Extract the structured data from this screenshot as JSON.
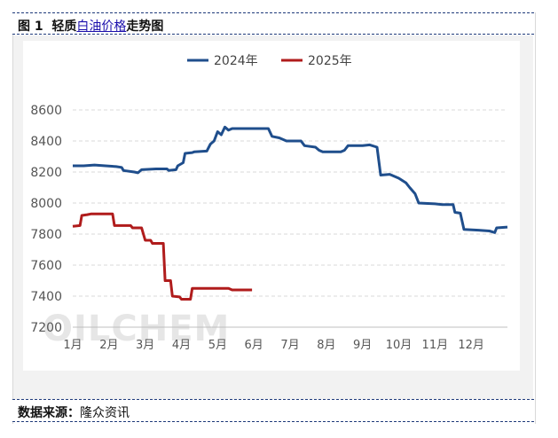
{
  "header": {
    "figure_no": "图 1",
    "title_prefix": "轻质",
    "title_link": "白油价格",
    "title_suffix": "走势图"
  },
  "footer": {
    "source_label": "数据来源：",
    "source_value": "隆众资讯"
  },
  "watermark": "OILCHEM",
  "colors": {
    "s2024": "#1f4e8c",
    "s2025": "#b01c1c",
    "grid": "#d9d9d9",
    "axis": "#555555"
  },
  "chart_data": {
    "type": "line",
    "title": "",
    "xlabel": "",
    "ylabel": "",
    "ylim": [
      7200,
      8600
    ],
    "yticks": [
      7200,
      7400,
      7600,
      7800,
      8000,
      8200,
      8400,
      8600
    ],
    "categories": [
      "1月",
      "2月",
      "3月",
      "4月",
      "5月",
      "6月",
      "7月",
      "8月",
      "9月",
      "10月",
      "11月",
      "12月"
    ],
    "x_unit": "month",
    "legend_position": "top-center",
    "grid": true,
    "series": [
      {
        "name": "2024年",
        "color": "#1f4e8c",
        "points": [
          [
            0.0,
            8240
          ],
          [
            0.3,
            8240
          ],
          [
            0.6,
            8245
          ],
          [
            0.9,
            8240
          ],
          [
            1.2,
            8235
          ],
          [
            1.35,
            8230
          ],
          [
            1.4,
            8210
          ],
          [
            1.7,
            8200
          ],
          [
            1.8,
            8195
          ],
          [
            1.9,
            8215
          ],
          [
            2.3,
            8220
          ],
          [
            2.6,
            8220
          ],
          [
            2.65,
            8210
          ],
          [
            2.85,
            8215
          ],
          [
            2.9,
            8240
          ],
          [
            3.05,
            8260
          ],
          [
            3.1,
            8320
          ],
          [
            3.3,
            8325
          ],
          [
            3.35,
            8330
          ],
          [
            3.7,
            8335
          ],
          [
            3.8,
            8380
          ],
          [
            3.9,
            8400
          ],
          [
            4.0,
            8460
          ],
          [
            4.1,
            8440
          ],
          [
            4.2,
            8490
          ],
          [
            4.3,
            8470
          ],
          [
            4.4,
            8480
          ],
          [
            5.4,
            8480
          ],
          [
            5.5,
            8430
          ],
          [
            5.7,
            8420
          ],
          [
            5.9,
            8400
          ],
          [
            6.3,
            8400
          ],
          [
            6.4,
            8370
          ],
          [
            6.7,
            8360
          ],
          [
            6.8,
            8340
          ],
          [
            6.9,
            8330
          ],
          [
            7.4,
            8330
          ],
          [
            7.5,
            8340
          ],
          [
            7.6,
            8370
          ],
          [
            8.0,
            8370
          ],
          [
            8.2,
            8375
          ],
          [
            8.4,
            8360
          ],
          [
            8.5,
            8180
          ],
          [
            8.75,
            8185
          ],
          [
            9.0,
            8160
          ],
          [
            9.2,
            8130
          ],
          [
            9.3,
            8100
          ],
          [
            9.45,
            8060
          ],
          [
            9.55,
            8000
          ],
          [
            10.0,
            7995
          ],
          [
            10.2,
            7990
          ],
          [
            10.5,
            7990
          ],
          [
            10.55,
            7940
          ],
          [
            10.7,
            7935
          ],
          [
            10.8,
            7830
          ],
          [
            11.2,
            7825
          ],
          [
            11.5,
            7820
          ],
          [
            11.65,
            7810
          ],
          [
            11.7,
            7840
          ],
          [
            12.0,
            7845
          ]
        ]
      },
      {
        "name": "2025年",
        "color": "#b01c1c",
        "points": [
          [
            0.0,
            7850
          ],
          [
            0.2,
            7855
          ],
          [
            0.25,
            7920
          ],
          [
            0.4,
            7925
          ],
          [
            0.5,
            7930
          ],
          [
            1.1,
            7930
          ],
          [
            1.15,
            7855
          ],
          [
            1.6,
            7855
          ],
          [
            1.65,
            7840
          ],
          [
            1.9,
            7840
          ],
          [
            2.0,
            7760
          ],
          [
            2.15,
            7760
          ],
          [
            2.2,
            7740
          ],
          [
            2.5,
            7740
          ],
          [
            2.55,
            7500
          ],
          [
            2.7,
            7500
          ],
          [
            2.75,
            7400
          ],
          [
            2.95,
            7395
          ],
          [
            3.0,
            7380
          ],
          [
            3.25,
            7380
          ],
          [
            3.3,
            7450
          ],
          [
            4.3,
            7450
          ],
          [
            4.4,
            7440
          ],
          [
            4.95,
            7440
          ]
        ]
      }
    ]
  }
}
